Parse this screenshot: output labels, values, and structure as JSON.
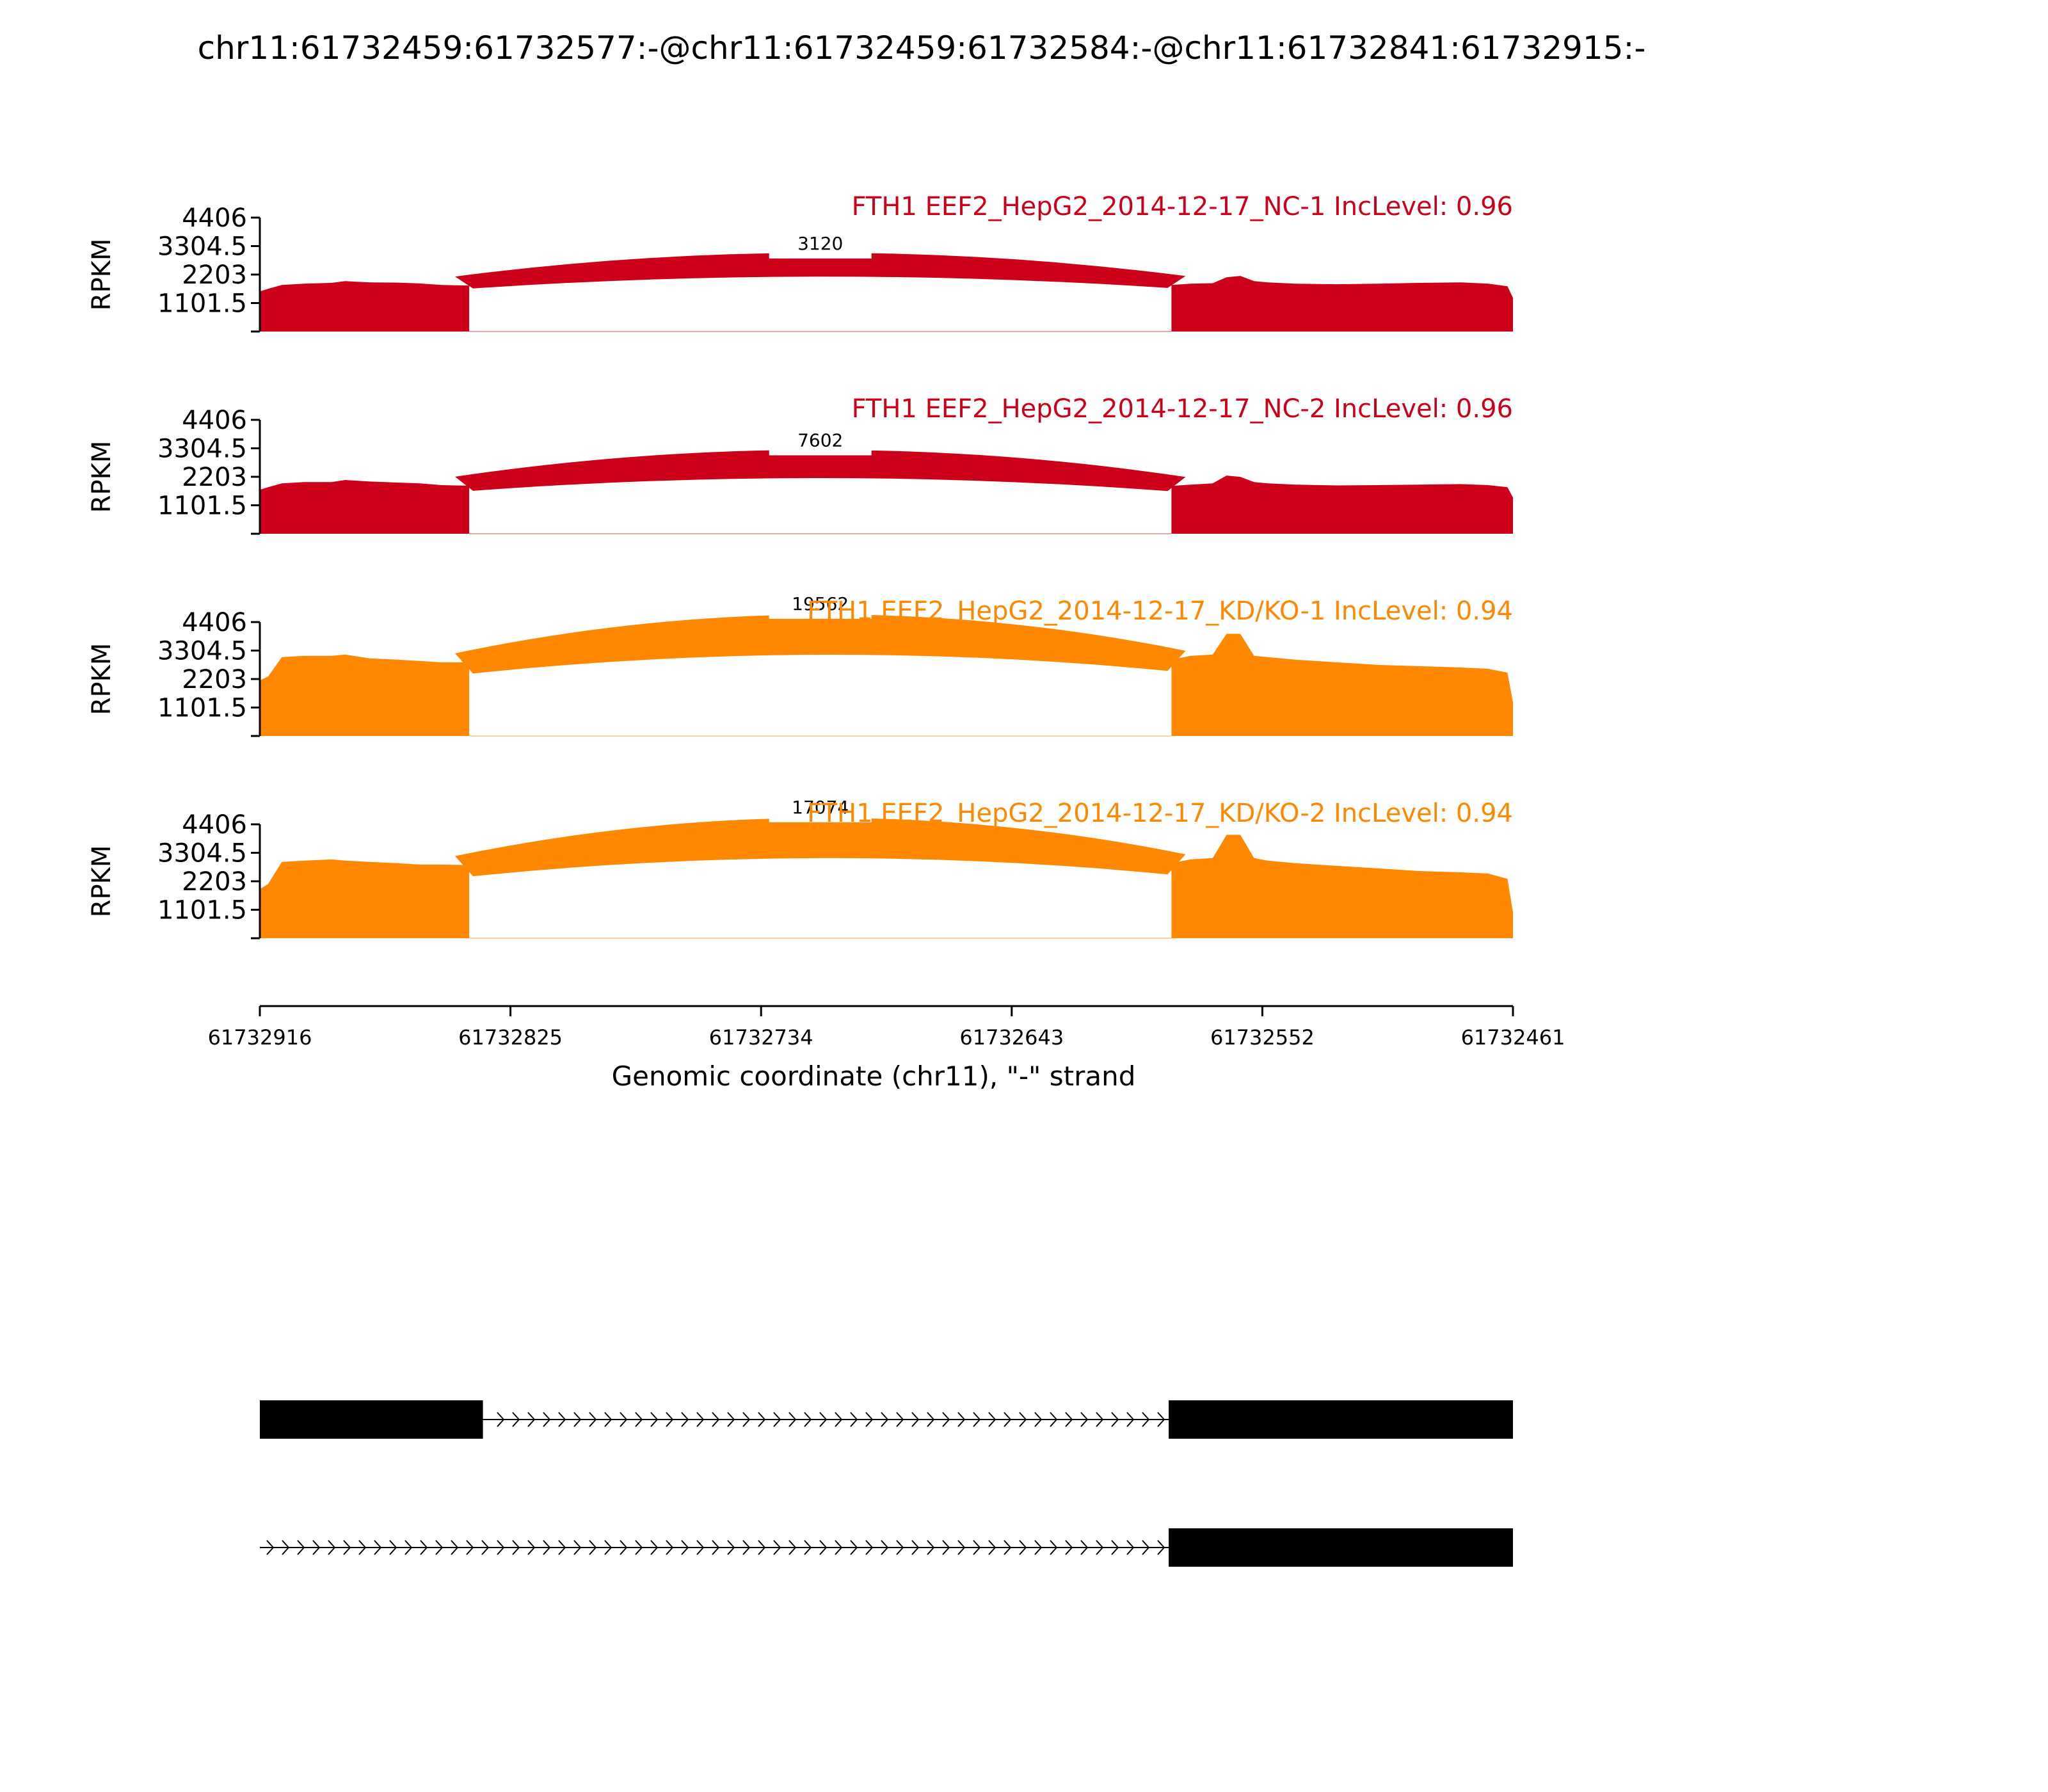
{
  "page_title": "chr11:61732459:61732577:-@chr11:61732459:61732584:-@chr11:61732841:61732915:-",
  "chart_data": {
    "type": "area",
    "title": "chr11:61732459:61732577:-@chr11:61732459:61732584:-@chr11:61732841:61732915:-",
    "xlabel": "Genomic coordinate (chr11), \"-\" strand",
    "ylabel": "RPKM",
    "x_reversed": true,
    "xlim": [
      61732916,
      61732461
    ],
    "x_ticks": [
      61732916,
      61732825,
      61732734,
      61732643,
      61732552,
      61732461
    ],
    "x_tick_labels": [
      "61732916",
      "61732825",
      "61732734",
      "61732643",
      "61732552",
      "61732461"
    ],
    "ylim": [
      0,
      4406
    ],
    "y_ticks": [
      0,
      1101.5,
      2203,
      3304.5,
      4406
    ],
    "y_tick_labels": [
      "",
      "1101.5",
      "2203",
      "3304.5",
      "4406"
    ],
    "exon_left": [
      61732916,
      61732840
    ],
    "exon_right": [
      61732585,
      61732461
    ],
    "tracks": [
      {
        "label": "FTH1 EEF2_HepG2_2014-12-17_NC-1 IncLevel: 0.96",
        "color": "#cc0018",
        "junction_count": "3120",
        "junction_width": 0.12,
        "coverage_left": [
          [
            61732916,
            1550
          ],
          [
            61732913,
            1650
          ],
          [
            61732908,
            1800
          ],
          [
            61732900,
            1850
          ],
          [
            61732890,
            1880
          ],
          [
            61732885,
            1950
          ],
          [
            61732876,
            1900
          ],
          [
            61732866,
            1890
          ],
          [
            61732858,
            1860
          ],
          [
            61732850,
            1800
          ],
          [
            61732845,
            1790
          ],
          [
            61732840,
            1780
          ]
        ],
        "coverage_right": [
          [
            61732585,
            1800
          ],
          [
            61732578,
            1850
          ],
          [
            61732570,
            1870
          ],
          [
            61732565,
            2100
          ],
          [
            61732560,
            2150
          ],
          [
            61732555,
            1950
          ],
          [
            61732550,
            1900
          ],
          [
            61732540,
            1850
          ],
          [
            61732525,
            1830
          ],
          [
            61732510,
            1850
          ],
          [
            61732495,
            1880
          ],
          [
            61732480,
            1900
          ],
          [
            61732470,
            1850
          ],
          [
            61732463,
            1750
          ],
          [
            61732461,
            1300
          ]
        ]
      },
      {
        "label": "FTH1 EEF2_HepG2_2014-12-17_NC-2 IncLevel: 0.96",
        "color": "#cc0018",
        "junction_count": "7602",
        "junction_width": 0.2,
        "coverage_left": [
          [
            61732916,
            1700
          ],
          [
            61732913,
            1800
          ],
          [
            61732908,
            1950
          ],
          [
            61732900,
            2000
          ],
          [
            61732890,
            2000
          ],
          [
            61732885,
            2080
          ],
          [
            61732876,
            2020
          ],
          [
            61732866,
            1980
          ],
          [
            61732858,
            1950
          ],
          [
            61732850,
            1880
          ],
          [
            61732845,
            1870
          ],
          [
            61732840,
            1860
          ]
        ],
        "coverage_right": [
          [
            61732585,
            1850
          ],
          [
            61732578,
            1900
          ],
          [
            61732570,
            1950
          ],
          [
            61732565,
            2250
          ],
          [
            61732560,
            2200
          ],
          [
            61732555,
            2000
          ],
          [
            61732550,
            1950
          ],
          [
            61732540,
            1900
          ],
          [
            61732525,
            1870
          ],
          [
            61732510,
            1880
          ],
          [
            61732495,
            1900
          ],
          [
            61732480,
            1920
          ],
          [
            61732470,
            1880
          ],
          [
            61732463,
            1800
          ],
          [
            61732461,
            1400
          ]
        ]
      },
      {
        "label": "FTH1 EEF2_HepG2_2014-12-17_KD/KO-1 IncLevel: 0.94",
        "color": "#ff8800",
        "junction_count": "19562",
        "junction_width": 0.42,
        "coverage_left": [
          [
            61732916,
            2150
          ],
          [
            61732913,
            2300
          ],
          [
            61732908,
            3050
          ],
          [
            61732900,
            3100
          ],
          [
            61732890,
            3100
          ],
          [
            61732885,
            3150
          ],
          [
            61732876,
            3000
          ],
          [
            61732866,
            2950
          ],
          [
            61732858,
            2900
          ],
          [
            61732850,
            2850
          ],
          [
            61732845,
            2850
          ],
          [
            61732840,
            2850
          ]
        ],
        "coverage_right": [
          [
            61732585,
            2950
          ],
          [
            61732578,
            3100
          ],
          [
            61732570,
            3150
          ],
          [
            61732565,
            3950
          ],
          [
            61732560,
            3950
          ],
          [
            61732555,
            3100
          ],
          [
            61732550,
            3050
          ],
          [
            61732540,
            2950
          ],
          [
            61732525,
            2850
          ],
          [
            61732510,
            2750
          ],
          [
            61732495,
            2700
          ],
          [
            61732480,
            2650
          ],
          [
            61732470,
            2600
          ],
          [
            61732463,
            2450
          ],
          [
            61732461,
            1300
          ]
        ]
      },
      {
        "label": "FTH1 EEF2_HepG2_2014-12-17_KD/KO-2 IncLevel: 0.94",
        "color": "#ff8800",
        "junction_count": "17074",
        "junction_width": 0.42,
        "coverage_left": [
          [
            61732916,
            1900
          ],
          [
            61732913,
            2100
          ],
          [
            61732908,
            2950
          ],
          [
            61732900,
            3000
          ],
          [
            61732890,
            3050
          ],
          [
            61732885,
            3000
          ],
          [
            61732876,
            2950
          ],
          [
            61732866,
            2900
          ],
          [
            61732858,
            2850
          ],
          [
            61732850,
            2850
          ],
          [
            61732845,
            2840
          ],
          [
            61732840,
            2830
          ]
        ],
        "coverage_right": [
          [
            61732585,
            2900
          ],
          [
            61732578,
            3050
          ],
          [
            61732570,
            3100
          ],
          [
            61732565,
            4000
          ],
          [
            61732560,
            4000
          ],
          [
            61732555,
            3100
          ],
          [
            61732550,
            3000
          ],
          [
            61732540,
            2900
          ],
          [
            61732525,
            2800
          ],
          [
            61732510,
            2700
          ],
          [
            61732495,
            2600
          ],
          [
            61732480,
            2550
          ],
          [
            61732470,
            2500
          ],
          [
            61732463,
            2300
          ],
          [
            61732461,
            1000
          ]
        ]
      }
    ],
    "isoforms": [
      {
        "exons": [
          [
            61732916,
            61732835
          ],
          [
            61732586,
            61732461
          ]
        ]
      },
      {
        "exons": [
          [
            61732586,
            61732461
          ]
        ]
      }
    ]
  }
}
